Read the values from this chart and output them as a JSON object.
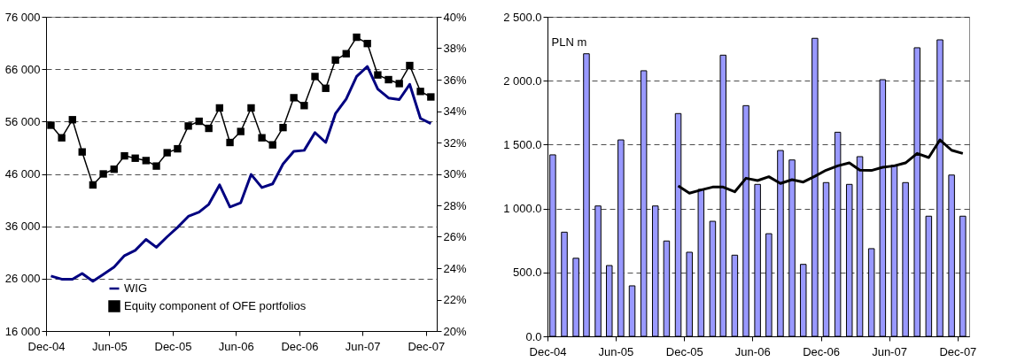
{
  "chart_data": [
    {
      "type": "line",
      "x": [
        "2004-12-15",
        "2005-01-15",
        "2005-02-15",
        "2005-03-15",
        "2005-04-15",
        "2005-05-15",
        "2005-06-15",
        "2005-07-15",
        "2005-08-15",
        "2005-09-15",
        "2005-10-15",
        "2005-11-15",
        "2005-12-15",
        "2006-01-15",
        "2006-02-15",
        "2006-03-15",
        "2006-04-15",
        "2006-05-15",
        "2006-06-15",
        "2006-07-15",
        "2006-08-15",
        "2006-09-15",
        "2006-10-15",
        "2006-11-15",
        "2006-12-15",
        "2007-01-15",
        "2007-02-15",
        "2007-03-15",
        "2007-04-15",
        "2007-05-15",
        "2007-06-15",
        "2007-07-15",
        "2007-08-15",
        "2007-09-15",
        "2007-10-15",
        "2007-11-15",
        "2007-12-15"
      ],
      "series": [
        {
          "name": "WIG",
          "color": "#000080",
          "marker": "none",
          "values": [
            26500,
            25900,
            25900,
            27000,
            25500,
            26800,
            28200,
            30400,
            31400,
            33500,
            32000,
            34000,
            35800,
            37900,
            38700,
            40200,
            43900,
            39700,
            40500,
            45900,
            43400,
            44100,
            47900,
            50300,
            50500,
            53900,
            52000,
            57500,
            60300,
            64600,
            66500,
            62200,
            60500,
            60200,
            63100,
            56600,
            55600
          ]
        },
        {
          "name": "Equity component of OFE portfolios",
          "color": "#000000",
          "marker": "square",
          "axis": "y2",
          "values": [
            33.1,
            32.3,
            33.45,
            31.4,
            29.3,
            30.0,
            30.3,
            31.15,
            31.0,
            30.85,
            30.5,
            31.35,
            31.6,
            33.05,
            33.35,
            32.9,
            34.2,
            32.0,
            32.7,
            34.2,
            32.3,
            31.85,
            32.95,
            34.85,
            34.35,
            36.2,
            35.45,
            37.25,
            37.65,
            38.7,
            38.3,
            36.3,
            36.0,
            35.75,
            36.9,
            35.25,
            34.9
          ]
        }
      ],
      "xlim": [
        "2004-12-01",
        "2008-01-01"
      ],
      "xticks": [
        {
          "value": "2004-12-01",
          "label": "Dec-04"
        },
        {
          "value": "2005-06-01",
          "label": "Jun-05"
        },
        {
          "value": "2005-12-01",
          "label": "Dec-05"
        },
        {
          "value": "2006-06-01",
          "label": "Jun-06"
        },
        {
          "value": "2006-12-01",
          "label": "Dec-06"
        },
        {
          "value": "2007-06-01",
          "label": "Jun-07"
        },
        {
          "value": "2007-12-01",
          "label": "Dec-07"
        }
      ],
      "ylim": [
        16000,
        76000
      ],
      "yticks": [
        {
          "value": 16000,
          "label": "16 000"
        },
        {
          "value": 26000,
          "label": "26 000"
        },
        {
          "value": 36000,
          "label": "36 000"
        },
        {
          "value": 46000,
          "label": "46 000"
        },
        {
          "value": 56000,
          "label": "56 000"
        },
        {
          "value": 66000,
          "label": "66 000"
        },
        {
          "value": 76000,
          "label": "76 000"
        }
      ],
      "y2lim": [
        20,
        40
      ],
      "y2ticks": [
        {
          "value": 20,
          "label": "20%"
        },
        {
          "value": 22,
          "label": "22%"
        },
        {
          "value": 24,
          "label": "24%"
        },
        {
          "value": 26,
          "label": "26%"
        },
        {
          "value": 28,
          "label": "28%"
        },
        {
          "value": 30,
          "label": "30%"
        },
        {
          "value": 32,
          "label": "32%"
        },
        {
          "value": 34,
          "label": "34%"
        },
        {
          "value": 36,
          "label": "36%"
        },
        {
          "value": 38,
          "label": "38%"
        },
        {
          "value": 40,
          "label": "40%"
        }
      ],
      "grid": "y",
      "legend": "bottom",
      "line_style": "solid"
    },
    {
      "type": "bar",
      "x": [
        "2004-12-15",
        "2005-01-15",
        "2005-02-15",
        "2005-03-15",
        "2005-04-15",
        "2005-05-15",
        "2005-06-15",
        "2005-07-15",
        "2005-08-15",
        "2005-09-15",
        "2005-10-15",
        "2005-11-15",
        "2005-12-15",
        "2006-01-15",
        "2006-02-15",
        "2006-03-15",
        "2006-04-15",
        "2006-05-15",
        "2006-06-15",
        "2006-07-15",
        "2006-08-15",
        "2006-09-15",
        "2006-10-15",
        "2006-11-15",
        "2006-12-15",
        "2007-01-15",
        "2007-02-15",
        "2007-03-15",
        "2007-04-15",
        "2007-05-15",
        "2007-06-15",
        "2007-07-15",
        "2007-08-15",
        "2007-09-15",
        "2007-10-15",
        "2007-11-15",
        "2007-12-15"
      ],
      "ylabel": "PLN m",
      "series": [
        {
          "type": "bar",
          "color": "#9999ff",
          "values": [
            1420,
            815,
            611,
            2211,
            1020,
            554,
            1537,
            395,
            2078,
            1020,
            746,
            1743,
            658,
            1150,
            900,
            2200,
            635,
            1805,
            1189,
            803,
            1454,
            1380,
            563,
            2332,
            1203,
            1597,
            1189,
            1406,
            686,
            2008,
            1340,
            1203,
            2258,
            940,
            2320,
            1262,
            940
          ]
        },
        {
          "type": "line",
          "color": "#000000",
          "values": [
            null,
            null,
            null,
            null,
            null,
            null,
            null,
            null,
            null,
            null,
            null,
            1177,
            1120,
            1145,
            1168,
            1168,
            1131,
            1237,
            1219,
            1249,
            1196,
            1226,
            1207,
            1253,
            1300,
            1334,
            1357,
            1300,
            1298,
            1323,
            1334,
            1357,
            1431,
            1399,
            1537,
            1456,
            1431
          ]
        }
      ],
      "xlim": [
        "2004-12-01",
        "2008-01-01"
      ],
      "xticks": [
        {
          "value": "2004-12-01",
          "label": "Dec-04"
        },
        {
          "value": "2005-06-01",
          "label": "Jun-05"
        },
        {
          "value": "2005-12-01",
          "label": "Dec-05"
        },
        {
          "value": "2006-06-01",
          "label": "Jun-06"
        },
        {
          "value": "2006-12-01",
          "label": "Dec-06"
        },
        {
          "value": "2007-06-01",
          "label": "Jun-07"
        },
        {
          "value": "2007-12-01",
          "label": "Dec-07"
        }
      ],
      "ylim": [
        0,
        2500
      ],
      "yticks": [
        {
          "value": 0,
          "label": "0.0"
        },
        {
          "value": 500,
          "label": "500.0"
        },
        {
          "value": 1000,
          "label": "1 000.0"
        },
        {
          "value": 1500,
          "label": "1 500.0"
        },
        {
          "value": 2000,
          "label": "2 000.0"
        },
        {
          "value": 2500,
          "label": "2 500.0"
        }
      ],
      "grid": "y",
      "line_style": "solid"
    }
  ]
}
